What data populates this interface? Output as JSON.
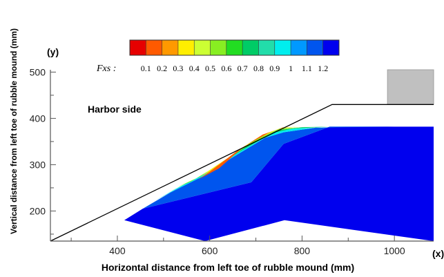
{
  "chart_data": {
    "type": "contour",
    "xlabel": "Horizontal distance from left toe of rubble mound  (mm)",
    "ylabel": "Vertical distance from left toe of rubble mound (mm)",
    "x_axis_symbol": "(x)",
    "y_axis_symbol": "(y)",
    "x_ticks": [
      "400",
      "600",
      "800",
      "1000"
    ],
    "y_ticks": [
      "200",
      "300",
      "400",
      "500"
    ],
    "xlim": [
      255,
      1085
    ],
    "ylim": [
      135,
      505
    ],
    "annotation": "Harbor side",
    "legend": {
      "label": "Fxs :",
      "levels": [
        "0.1",
        "0.2",
        "0.3",
        "0.4",
        "0.5",
        "0.6",
        "0.7",
        "0.8",
        "0.9",
        "1",
        "1.1",
        "1.2"
      ],
      "colors": [
        "#e60000",
        "#ff5a00",
        "#ff9900",
        "#ffee00",
        "#ccff33",
        "#88ee22",
        "#22dd22",
        "#00cc66",
        "#22ddaa",
        "#00eeee",
        "#0099ff",
        "#0055ee",
        "#0000ee"
      ]
    },
    "mound_outline": [
      [
        255,
        135
      ],
      [
        865,
        430
      ],
      [
        1085,
        430
      ]
    ],
    "structure_block": {
      "x0": 985,
      "x1": 1085,
      "y0": 430,
      "y1": 505
    },
    "main_region": [
      [
        415,
        180
      ],
      [
        455,
        205
      ],
      [
        690,
        262
      ],
      [
        760,
        345
      ],
      [
        860,
        382
      ],
      [
        1085,
        382
      ],
      [
        1085,
        135
      ],
      [
        762,
        180
      ],
      [
        590,
        135
      ]
    ],
    "bands": [
      {
        "level_index": 11,
        "polygon": [
          [
            455,
            205
          ],
          [
            515,
            240
          ],
          [
            585,
            275
          ],
          [
            640,
            310
          ],
          [
            720,
            358
          ],
          [
            760,
            370
          ],
          [
            830,
            380
          ],
          [
            1000,
            382
          ],
          [
            860,
            382
          ],
          [
            760,
            345
          ],
          [
            690,
            262
          ]
        ]
      },
      {
        "level_index": 9,
        "polygon": [
          [
            480,
            222
          ],
          [
            540,
            255
          ],
          [
            600,
            285
          ],
          [
            660,
            325
          ],
          [
            735,
            368
          ],
          [
            780,
            378
          ],
          [
            900,
            382
          ],
          [
            830,
            380
          ],
          [
            760,
            370
          ],
          [
            720,
            358
          ],
          [
            640,
            310
          ],
          [
            585,
            275
          ],
          [
            515,
            240
          ]
        ]
      },
      {
        "level_index": 7,
        "polygon": [
          [
            505,
            238
          ],
          [
            560,
            264
          ],
          [
            620,
            300
          ],
          [
            680,
            340
          ],
          [
            745,
            374
          ],
          [
            800,
            381
          ],
          [
            860,
            382
          ],
          [
            780,
            378
          ],
          [
            735,
            368
          ],
          [
            660,
            325
          ],
          [
            600,
            285
          ],
          [
            540,
            255
          ]
        ]
      },
      {
        "level_index": 5,
        "polygon": [
          [
            530,
            252
          ],
          [
            580,
            275
          ],
          [
            640,
            315
          ],
          [
            700,
            355
          ],
          [
            752,
            378
          ],
          [
            820,
            382
          ],
          [
            800,
            381
          ],
          [
            745,
            374
          ],
          [
            680,
            340
          ],
          [
            620,
            300
          ],
          [
            560,
            264
          ]
        ]
      },
      {
        "level_index": 3,
        "polygon": [
          [
            555,
            262
          ],
          [
            600,
            285
          ],
          [
            660,
            330
          ],
          [
            715,
            365
          ],
          [
            758,
            380
          ],
          [
            790,
            382
          ],
          [
            752,
            378
          ],
          [
            700,
            355
          ],
          [
            640,
            315
          ],
          [
            580,
            275
          ]
        ]
      },
      {
        "level_index": 1,
        "polygon": [
          [
            575,
            268
          ],
          [
            620,
            292
          ],
          [
            675,
            340
          ],
          [
            730,
            370
          ],
          [
            762,
            382
          ],
          [
            758,
            380
          ],
          [
            715,
            365
          ],
          [
            660,
            330
          ],
          [
            600,
            285
          ]
        ]
      }
    ]
  }
}
